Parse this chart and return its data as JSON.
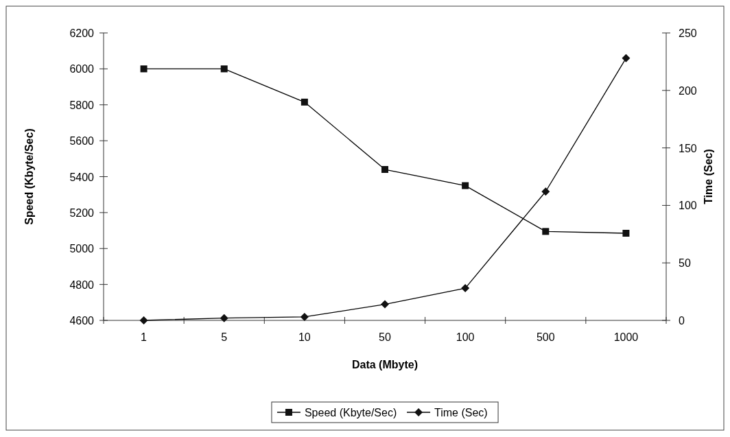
{
  "chart_data": {
    "type": "line",
    "xlabel": "Data (Mbyte)",
    "ylabel": "Speed (Kbyte/Sec)",
    "y2label": "Time (Sec)",
    "categories": [
      "1",
      "5",
      "10",
      "50",
      "100",
      "500",
      "1000"
    ],
    "series": [
      {
        "name": "Speed (Kbyte/Sec)",
        "color": "#000000",
        "marker": "square",
        "values": [
          6000,
          6000,
          5815,
          5440,
          5350,
          5095,
          5085
        ]
      },
      {
        "name": "Time (Sec)",
        "color": "#000000",
        "marker": "diamond",
        "axis": "y2",
        "values": [
          0,
          2,
          3,
          14,
          28,
          112,
          228
        ]
      }
    ],
    "ylim": [
      4600,
      6200
    ],
    "yticks": [
      4600,
      4800,
      5000,
      5200,
      5400,
      5600,
      5800,
      6000,
      6200
    ],
    "y2lim": [
      0,
      250
    ],
    "y2ticks": [
      0,
      50,
      100,
      150,
      200,
      250
    ],
    "legend": "bottom",
    "grid": false
  }
}
